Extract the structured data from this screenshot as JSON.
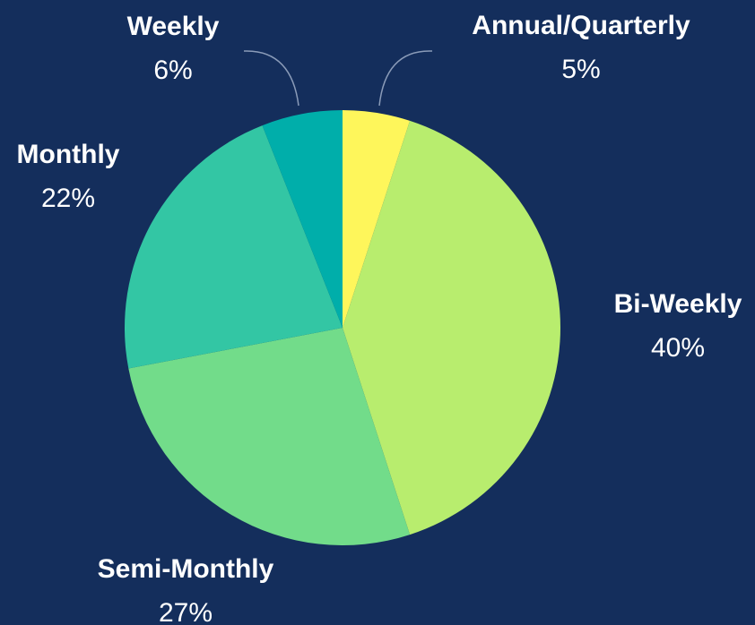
{
  "chart_data": {
    "type": "pie",
    "categories": [
      "Annual/Quarterly",
      "Bi-Weekly",
      "Semi-Monthly",
      "Monthly",
      "Weekly"
    ],
    "values": [
      5,
      40,
      27,
      22,
      6
    ],
    "value_labels": [
      "5%",
      "40%",
      "27%",
      "22%",
      "6%"
    ],
    "colors": [
      "#fef65b",
      "#b8ed6e",
      "#72dc8a",
      "#33c6a4",
      "#00aeaa"
    ]
  }
}
